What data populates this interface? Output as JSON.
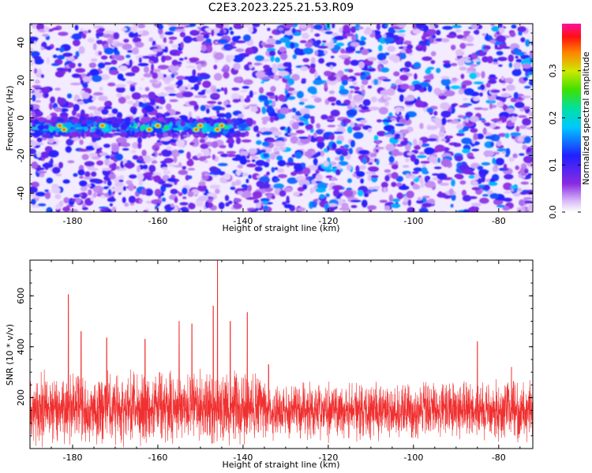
{
  "title": "C2E3.2023.225.21.53.R09",
  "chart_data": [
    {
      "type": "heatmap",
      "xlabel": "Height of straight line (km)",
      "ylabel": "Frequency (Hz)",
      "xlim": [
        -190,
        -72
      ],
      "ylim": [
        -50,
        50
      ],
      "x_ticks": [
        -180,
        -160,
        -140,
        -120,
        -100,
        -80
      ],
      "y_ticks": [
        -40,
        -20,
        0,
        20,
        40
      ],
      "grid": false,
      "colormap": "purple-blue-cyan-green-yellow-red-magenta",
      "band": {
        "frequency_hz": -5,
        "x_from": -190,
        "x_to": -140,
        "peak_amplitude": 0.36
      },
      "colorbar": {
        "label": "Normalized spectral amplitude",
        "range": [
          0,
          0.4
        ],
        "ticks": [
          0.0,
          0.1,
          0.2,
          0.3
        ]
      }
    },
    {
      "type": "line",
      "xlabel": "Height of straight line (km)",
      "ylabel": "SNR (10 * v/v)",
      "xlim": [
        -190,
        -72
      ],
      "ylim": [
        0,
        740
      ],
      "x_ticks": [
        -180,
        -160,
        -140,
        -120,
        -100,
        -80
      ],
      "y_ticks": [
        200,
        400,
        600
      ],
      "grid": false,
      "series_color": "#f03030",
      "baseline_mean": 150,
      "peaks": [
        {
          "x": -181,
          "y": 605
        },
        {
          "x": -178,
          "y": 460
        },
        {
          "x": -172,
          "y": 435
        },
        {
          "x": -163,
          "y": 430
        },
        {
          "x": -155,
          "y": 500
        },
        {
          "x": -152,
          "y": 490
        },
        {
          "x": -147,
          "y": 560
        },
        {
          "x": -146,
          "y": 740
        },
        {
          "x": -143,
          "y": 500
        },
        {
          "x": -139,
          "y": 535
        },
        {
          "x": -134,
          "y": 330
        },
        {
          "x": -85,
          "y": 420
        },
        {
          "x": -77,
          "y": 320
        }
      ]
    }
  ]
}
